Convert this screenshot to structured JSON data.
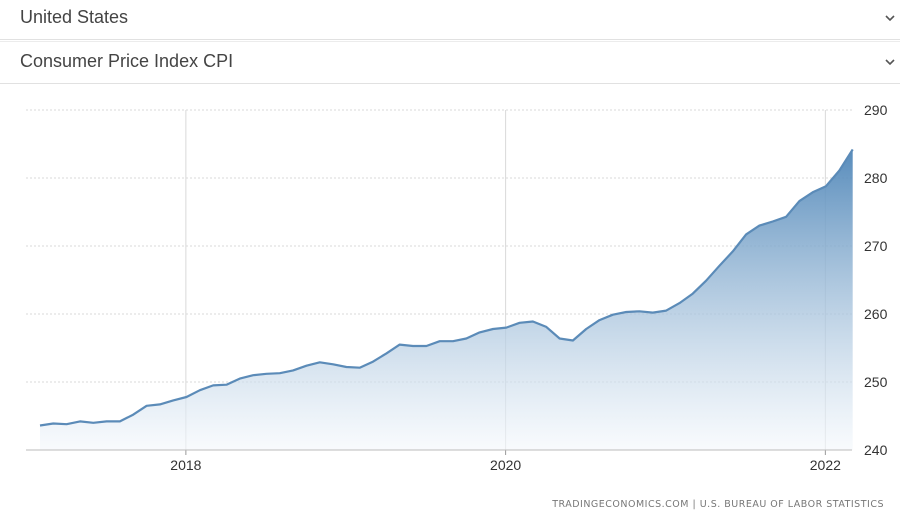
{
  "dropdowns": {
    "country": "United States",
    "indicator": "Consumer Price Index CPI"
  },
  "source_text": "TRADINGECONOMICS.COM  |  U.S. BUREAU OF LABOR STATISTICS",
  "colors": {
    "line": "#5b8bb8",
    "area_top": "#4f86b8",
    "area_bottom": "#f4f8fc",
    "grid": "#d9d9d9"
  },
  "chart_data": {
    "type": "area",
    "title": "",
    "xlabel": "",
    "ylabel": "",
    "y_axis_position": "right",
    "ylim": [
      240,
      290
    ],
    "yticks": [
      240,
      250,
      260,
      270,
      280,
      290
    ],
    "xlim": [
      "2017-01",
      "2022-03"
    ],
    "xticks": [
      {
        "label": "2018",
        "date": "2018-01"
      },
      {
        "label": "2020",
        "date": "2020-01"
      },
      {
        "label": "2022",
        "date": "2022-01"
      }
    ],
    "grid": true,
    "x": [
      "2017-01",
      "2017-02",
      "2017-03",
      "2017-04",
      "2017-05",
      "2017-06",
      "2017-07",
      "2017-08",
      "2017-09",
      "2017-10",
      "2017-11",
      "2017-12",
      "2018-01",
      "2018-02",
      "2018-03",
      "2018-04",
      "2018-05",
      "2018-06",
      "2018-07",
      "2018-08",
      "2018-09",
      "2018-10",
      "2018-11",
      "2018-12",
      "2019-01",
      "2019-02",
      "2019-03",
      "2019-04",
      "2019-05",
      "2019-06",
      "2019-07",
      "2019-08",
      "2019-09",
      "2019-10",
      "2019-11",
      "2019-12",
      "2020-01",
      "2020-02",
      "2020-03",
      "2020-04",
      "2020-05",
      "2020-06",
      "2020-07",
      "2020-08",
      "2020-09",
      "2020-10",
      "2020-11",
      "2020-12",
      "2021-01",
      "2021-02",
      "2021-03",
      "2021-04",
      "2021-05",
      "2021-06",
      "2021-07",
      "2021-08",
      "2021-09",
      "2021-10",
      "2021-11",
      "2021-12",
      "2022-01",
      "2022-02"
    ],
    "values": [
      243.6,
      243.9,
      243.8,
      244.2,
      244.0,
      244.2,
      244.2,
      245.2,
      246.5,
      246.7,
      247.3,
      247.8,
      248.8,
      249.5,
      249.6,
      250.5,
      251.0,
      251.2,
      251.3,
      251.7,
      252.4,
      252.9,
      252.6,
      252.2,
      252.1,
      253.0,
      254.2,
      255.5,
      255.3,
      255.3,
      256.0,
      256.0,
      256.4,
      257.3,
      257.8,
      258.0,
      258.7,
      258.9,
      258.1,
      256.4,
      256.1,
      257.8,
      259.1,
      259.9,
      260.3,
      260.4,
      260.2,
      260.5,
      261.6,
      263.0,
      264.9,
      267.1,
      269.2,
      271.7,
      273.0,
      273.6,
      274.3,
      276.6,
      277.9,
      278.8,
      281.1,
      284.2
    ]
  }
}
